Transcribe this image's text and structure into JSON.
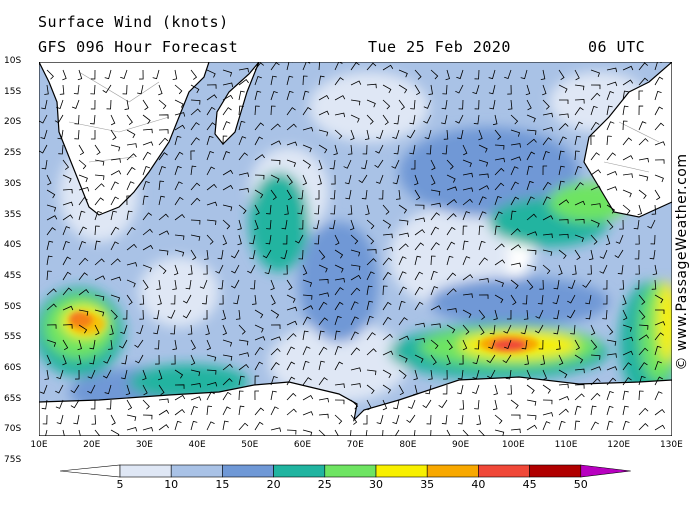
{
  "header": {
    "title": "Surface Wind (knots)",
    "subtitle": "GFS 096 Hour Forecast",
    "date": "Tue 25 Feb 2020",
    "time": "06 UTC"
  },
  "copyright": "© www.PassageWeather.com",
  "lat_labels": [
    "10S",
    "15S",
    "20S",
    "25S",
    "30S",
    "35S",
    "40S",
    "45S",
    "50S",
    "55S",
    "60S",
    "65S",
    "70S",
    "75S"
  ],
  "lon_labels": [
    "10E",
    "20E",
    "30E",
    "40E",
    "50E",
    "60E",
    "70E",
    "80E",
    "90E",
    "100E",
    "110E",
    "120E",
    "130E"
  ],
  "legend": {
    "labels": [
      "5",
      "10",
      "15",
      "20",
      "25",
      "30",
      "35",
      "40",
      "45",
      "50"
    ],
    "colors": [
      "#ffffff",
      "#dfe7f5",
      "#a9c2e6",
      "#6f98d6",
      "#20b4a0",
      "#6ee462",
      "#f8f000",
      "#f8a800",
      "#f04838",
      "#b00000",
      "#b800c0"
    ]
  },
  "map_colors": {
    "land": "#ffffff",
    "land_outline": "#000000",
    "land_relief": "#a0a0a0",
    "barb": "#000000"
  }
}
